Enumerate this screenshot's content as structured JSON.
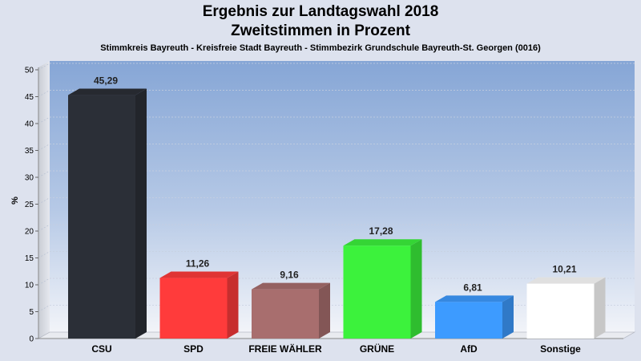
{
  "chart_data": {
    "type": "bar",
    "title": "Ergebnis zur Landtagswahl 2018",
    "title2": "Zweitstimmen in Prozent",
    "subtitle": "Stimmkreis Bayreuth - Kreisfreie Stadt Bayreuth - Stimmbezirk Grundschule Bayreuth-St. Georgen (0016)",
    "ylabel": "%",
    "xlabel": "",
    "ylim": [
      0,
      50
    ],
    "yticks": [
      0,
      5,
      10,
      15,
      20,
      25,
      30,
      35,
      40,
      45,
      50
    ],
    "grid": true,
    "categories": [
      "CSU",
      "SPD",
      "FREIE WÄHLER",
      "GRÜNE",
      "AfD",
      "Sonstige"
    ],
    "values": [
      45.29,
      11.26,
      9.16,
      17.28,
      6.81,
      10.21
    ],
    "value_labels": [
      "45,29",
      "11,26",
      "9,16",
      "17,28",
      "6,81",
      "10,21"
    ],
    "colors": [
      "#2b2f37",
      "#ff3b3b",
      "#a86e6e",
      "#3cf23c",
      "#3d9bff",
      "#ffffff"
    ]
  }
}
